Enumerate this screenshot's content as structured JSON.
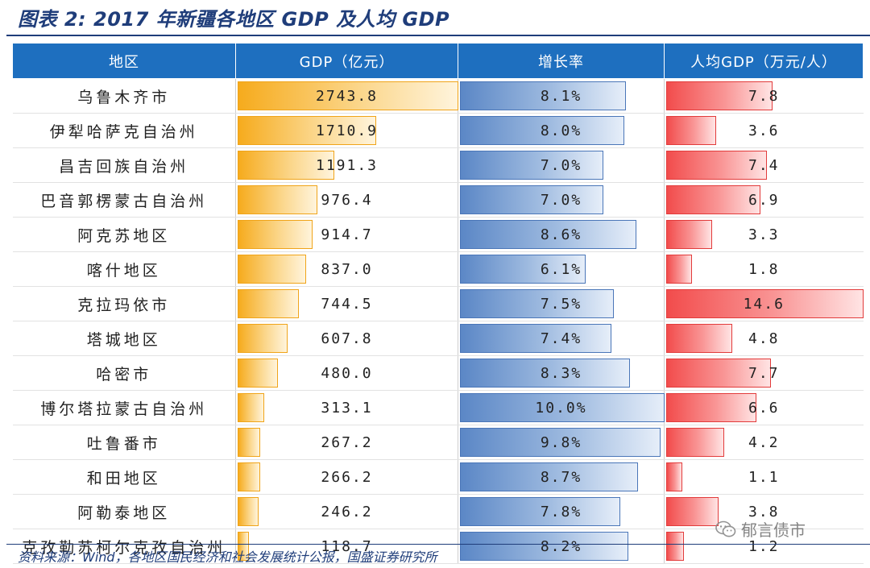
{
  "title": "图表 2: 2017 年新疆各地区 GDP 及人均 GDP",
  "columns": [
    "地区",
    "GDP（亿元）",
    "增长率",
    "人均GDP（万元/人）"
  ],
  "colors": {
    "header": "#1e6fbf",
    "gdp_bar": "#f6ab1d",
    "growth_bar": "#5b87c6",
    "per_capita_bar": "#f24c4c"
  },
  "rows": [
    {
      "region": "乌鲁木齐市",
      "gdp": "2743.8",
      "gdp_value": 2743.8,
      "growth": "8.1%",
      "growth_value": 8.1,
      "per_capita": "7.8",
      "per_capita_value": 7.8
    },
    {
      "region": "伊犁哈萨克自治州",
      "gdp": "1710.9",
      "gdp_value": 1710.9,
      "growth": "8.0%",
      "growth_value": 8.0,
      "per_capita": "3.6",
      "per_capita_value": 3.6
    },
    {
      "region": "昌吉回族自治州",
      "gdp": "1191.3",
      "gdp_value": 1191.3,
      "growth": "7.0%",
      "growth_value": 7.0,
      "per_capita": "7.4",
      "per_capita_value": 7.4
    },
    {
      "region": "巴音郭楞蒙古自治州",
      "gdp": "976.4",
      "gdp_value": 976.4,
      "growth": "7.0%",
      "growth_value": 7.0,
      "per_capita": "6.9",
      "per_capita_value": 6.9
    },
    {
      "region": "阿克苏地区",
      "gdp": "914.7",
      "gdp_value": 914.7,
      "growth": "8.6%",
      "growth_value": 8.6,
      "per_capita": "3.3",
      "per_capita_value": 3.3
    },
    {
      "region": "喀什地区",
      "gdp": "837.0",
      "gdp_value": 837.0,
      "growth": "6.1%",
      "growth_value": 6.1,
      "per_capita": "1.8",
      "per_capita_value": 1.8
    },
    {
      "region": "克拉玛依市",
      "gdp": "744.5",
      "gdp_value": 744.5,
      "growth": "7.5%",
      "growth_value": 7.5,
      "per_capita": "14.6",
      "per_capita_value": 14.6
    },
    {
      "region": "塔城地区",
      "gdp": "607.8",
      "gdp_value": 607.8,
      "growth": "7.4%",
      "growth_value": 7.4,
      "per_capita": "4.8",
      "per_capita_value": 4.8
    },
    {
      "region": "哈密市",
      "gdp": "480.0",
      "gdp_value": 480.0,
      "growth": "8.3%",
      "growth_value": 8.3,
      "per_capita": "7.7",
      "per_capita_value": 7.7
    },
    {
      "region": "博尔塔拉蒙古自治州",
      "gdp": "313.1",
      "gdp_value": 313.1,
      "growth": "10.0%",
      "growth_value": 10.0,
      "per_capita": "6.6",
      "per_capita_value": 6.6
    },
    {
      "region": "吐鲁番市",
      "gdp": "267.2",
      "gdp_value": 267.2,
      "growth": "9.8%",
      "growth_value": 9.8,
      "per_capita": "4.2",
      "per_capita_value": 4.2
    },
    {
      "region": "和田地区",
      "gdp": "266.2",
      "gdp_value": 266.2,
      "growth": "8.7%",
      "growth_value": 8.7,
      "per_capita": "1.1",
      "per_capita_value": 1.1
    },
    {
      "region": "阿勒泰地区",
      "gdp": "246.2",
      "gdp_value": 246.2,
      "growth": "7.8%",
      "growth_value": 7.8,
      "per_capita": "3.8",
      "per_capita_value": 3.8
    },
    {
      "region": "克孜勒苏柯尔克孜自治州",
      "gdp": "118.7",
      "gdp_value": 118.7,
      "growth": "8.2%",
      "growth_value": 8.2,
      "per_capita": "1.2",
      "per_capita_value": 1.2
    }
  ],
  "source": "资料来源：Wind，各地区国民经济和社会发展统计公报，国盛证券研究所",
  "watermark": "郁言债市"
}
